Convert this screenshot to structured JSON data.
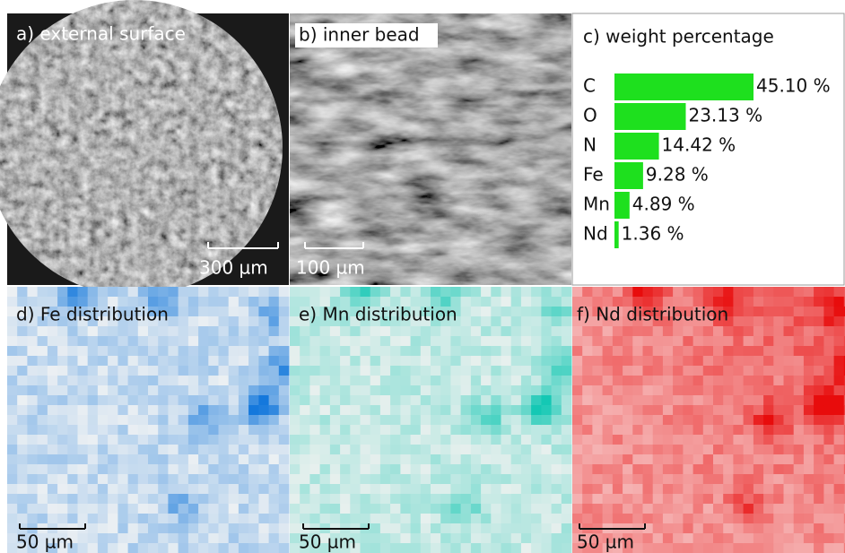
{
  "panels": {
    "a": {
      "label": "a) external surface",
      "scale": "300 µm"
    },
    "b": {
      "label": "b) inner bead",
      "scale": "100 µm"
    },
    "d": {
      "label": "d) Fe distribution",
      "scale": "50 µm"
    },
    "e": {
      "label": "e) Mn distribution",
      "scale": "50 µm"
    },
    "f": {
      "label": "f) Nd distribution",
      "scale": "50 µm"
    }
  },
  "chart_data": {
    "type": "bar",
    "title": "c) weight percentage",
    "categories": [
      "C",
      "O",
      "N",
      "Fe",
      "Mn",
      "Nd"
    ],
    "values": [
      45.1,
      23.13,
      14.42,
      9.28,
      4.89,
      1.36
    ],
    "value_labels": [
      "45.10 %",
      "23.13 %",
      "14.42 %",
      "9.28 %",
      "4.89 %",
      "1.36 %"
    ],
    "color": "#1ee01e"
  }
}
